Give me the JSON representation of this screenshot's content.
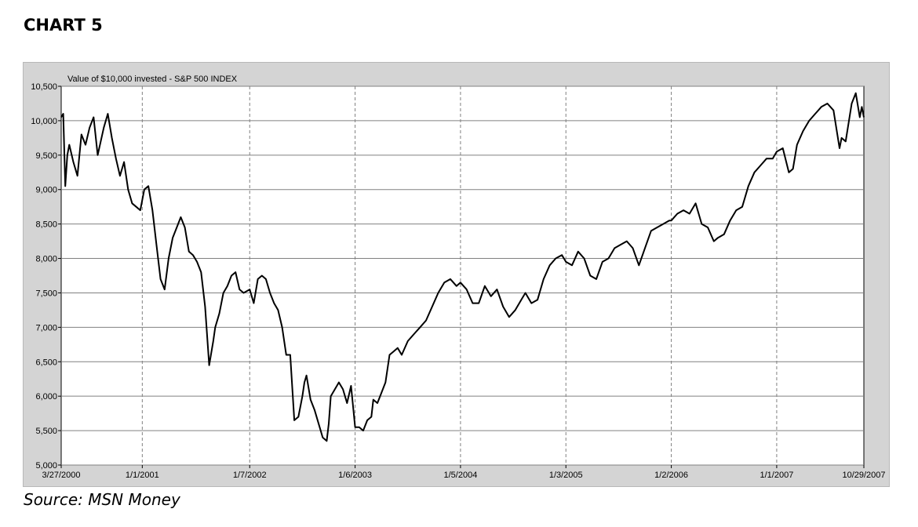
{
  "heading": "CHART 5",
  "source": "Source: MSN Money",
  "chart_data": {
    "type": "line",
    "title": "Value of $10,000 invested - S&P 500 INDEX",
    "xlabel": "",
    "ylabel": "",
    "ylim": [
      5000,
      10500
    ],
    "xlim": [
      "2000-03-27",
      "2007-10-29"
    ],
    "grid": true,
    "line_color": "#000000",
    "y_ticks": [
      5000,
      5500,
      6000,
      6500,
      7000,
      7500,
      8000,
      8500,
      9000,
      9500,
      10000,
      10500
    ],
    "y_tick_labels": [
      "5,000",
      "5,500",
      "6,000",
      "6,500",
      "7,000",
      "7,500",
      "8,000",
      "8,500",
      "9,000",
      "9,500",
      "10,000",
      "10,500"
    ],
    "x_ticks": [
      "2000-03-27",
      "2001-01-01",
      "2002-01-07",
      "2003-01-06",
      "2004-01-05",
      "2005-01-03",
      "2006-01-02",
      "2007-01-01",
      "2007-10-29"
    ],
    "x_tick_labels": [
      "3/27/2000",
      "1/1/2001",
      "1/7/2002",
      "1/6/2003",
      "1/5/2004",
      "1/3/2005",
      "1/2/2006",
      "1/1/2007",
      "10/29/2007"
    ],
    "series": [
      {
        "x": [
          "2000-03-27",
          "2000-04-03",
          "2000-04-10",
          "2000-04-17",
          "2000-04-24",
          "2000-05-08",
          "2000-05-22",
          "2000-06-05",
          "2000-06-19",
          "2000-07-03",
          "2000-07-17",
          "2000-07-31",
          "2000-08-21",
          "2000-09-04",
          "2000-09-18",
          "2000-10-02",
          "2000-10-16",
          "2000-10-30",
          "2000-11-13",
          "2000-11-27",
          "2000-12-11",
          "2000-12-25",
          "2001-01-08",
          "2001-01-22",
          "2001-02-05",
          "2001-02-19",
          "2001-03-05",
          "2001-03-19",
          "2001-04-02",
          "2001-04-16",
          "2001-04-30",
          "2001-05-14",
          "2001-05-28",
          "2001-06-11",
          "2001-06-25",
          "2001-07-09",
          "2001-07-23",
          "2001-08-06",
          "2001-08-20",
          "2001-09-03",
          "2001-09-10",
          "2001-09-24",
          "2001-10-08",
          "2001-10-22",
          "2001-11-05",
          "2001-11-19",
          "2001-12-03",
          "2001-12-17",
          "2002-01-07",
          "2002-01-21",
          "2002-02-04",
          "2002-02-18",
          "2002-03-04",
          "2002-03-18",
          "2002-04-01",
          "2002-04-15",
          "2002-04-29",
          "2002-05-13",
          "2002-05-27",
          "2002-06-10",
          "2002-06-24",
          "2002-07-08",
          "2002-07-15",
          "2002-07-22",
          "2002-08-05",
          "2002-08-19",
          "2002-09-02",
          "2002-09-16",
          "2002-09-30",
          "2002-10-07",
          "2002-10-14",
          "2002-10-28",
          "2002-11-11",
          "2002-11-25",
          "2002-12-09",
          "2002-12-23",
          "2003-01-06",
          "2003-01-20",
          "2003-02-03",
          "2003-02-17",
          "2003-03-03",
          "2003-03-10",
          "2003-03-24",
          "2003-04-07",
          "2003-04-21",
          "2003-05-05",
          "2003-05-19",
          "2003-06-02",
          "2003-06-16",
          "2003-07-07",
          "2003-07-28",
          "2003-08-18",
          "2003-09-08",
          "2003-09-29",
          "2003-10-20",
          "2003-11-10",
          "2003-12-01",
          "2003-12-22",
          "2004-01-05",
          "2004-01-26",
          "2004-02-16",
          "2004-03-08",
          "2004-03-29",
          "2004-04-19",
          "2004-05-10",
          "2004-05-31",
          "2004-06-21",
          "2004-07-12",
          "2004-08-02",
          "2004-08-16",
          "2004-09-06",
          "2004-09-27",
          "2004-10-18",
          "2004-11-08",
          "2004-11-29",
          "2004-12-20",
          "2005-01-03",
          "2005-01-24",
          "2005-02-14",
          "2005-03-07",
          "2005-03-28",
          "2005-04-18",
          "2005-05-09",
          "2005-05-30",
          "2005-06-20",
          "2005-07-11",
          "2005-08-01",
          "2005-08-22",
          "2005-09-12",
          "2005-10-03",
          "2005-10-24",
          "2005-11-14",
          "2005-12-05",
          "2005-12-26",
          "2006-01-02",
          "2006-01-23",
          "2006-02-13",
          "2006-03-06",
          "2006-03-27",
          "2006-04-17",
          "2006-05-08",
          "2006-05-29",
          "2006-06-12",
          "2006-07-03",
          "2006-07-24",
          "2006-08-14",
          "2006-09-04",
          "2006-09-25",
          "2006-10-16",
          "2006-11-06",
          "2006-11-27",
          "2006-12-18",
          "2007-01-01",
          "2007-01-22",
          "2007-02-12",
          "2007-02-26",
          "2007-03-12",
          "2007-04-02",
          "2007-04-23",
          "2007-05-14",
          "2007-06-04",
          "2007-06-25",
          "2007-07-16",
          "2007-08-06",
          "2007-08-13",
          "2007-08-27",
          "2007-09-17",
          "2007-10-01",
          "2007-10-15",
          "2007-10-22",
          "2007-10-29"
        ],
        "values": [
          10050,
          10100,
          9050,
          9500,
          9650,
          9400,
          9200,
          9800,
          9650,
          9900,
          10050,
          9500,
          9900,
          10100,
          9750,
          9450,
          9200,
          9400,
          9000,
          8800,
          8750,
          8700,
          9000,
          9050,
          8700,
          8200,
          7700,
          7550,
          8000,
          8300,
          8450,
          8600,
          8450,
          8100,
          8050,
          7950,
          7800,
          7300,
          6450,
          6800,
          7000,
          7200,
          7500,
          7600,
          7750,
          7800,
          7550,
          7500,
          7550,
          7350,
          7700,
          7750,
          7700,
          7500,
          7350,
          7250,
          7000,
          6600,
          6600,
          5650,
          5700,
          6000,
          6200,
          6300,
          5950,
          5800,
          5600,
          5400,
          5350,
          5600,
          6000,
          6100,
          6200,
          6100,
          5900,
          6150,
          5550,
          5550,
          5500,
          5650,
          5700,
          5950,
          5900,
          6050,
          6200,
          6600,
          6650,
          6700,
          6600,
          6800,
          6900,
          7000,
          7100,
          7300,
          7500,
          7650,
          7700,
          7600,
          7650,
          7550,
          7350,
          7350,
          7600,
          7450,
          7550,
          7300,
          7150,
          7250,
          7400,
          7500,
          7350,
          7400,
          7700,
          7900,
          8000,
          8050,
          7950,
          7900,
          8100,
          8000,
          7750,
          7700,
          7950,
          8000,
          8150,
          8200,
          8250,
          8150,
          7900,
          8150,
          8400,
          8450,
          8500,
          8550,
          8550,
          8650,
          8700,
          8650,
          8800,
          8500,
          8450,
          8250,
          8300,
          8350,
          8550,
          8700,
          8750,
          9050,
          9250,
          9350,
          9450,
          9450,
          9550,
          9600,
          9250,
          9300,
          9650,
          9850,
          10000,
          10100,
          10200,
          10250,
          10150,
          9600,
          9750,
          9700,
          10250,
          10400,
          10050,
          10200,
          10050
        ],
        "color": "#000000"
      }
    ]
  }
}
